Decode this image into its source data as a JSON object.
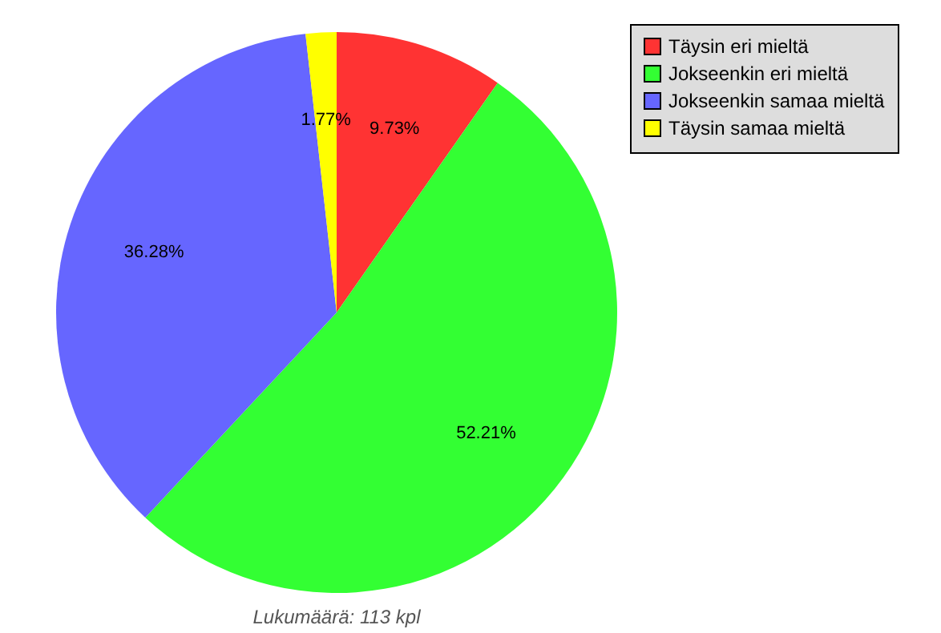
{
  "chart_data": {
    "type": "pie",
    "categories": [
      "Täysin eri mieltä",
      "Jokseenkin eri mieltä",
      "Jokseenkin samaa mieltä",
      "Täysin samaa mieltä"
    ],
    "values": [
      9.73,
      52.21,
      36.28,
      1.77
    ],
    "value_labels": [
      "9.73%",
      "52.21%",
      "36.28%",
      "1.77%"
    ],
    "colors": [
      "#ff3333",
      "#33ff33",
      "#6666ff",
      "#ffff00"
    ],
    "legend": "top right",
    "annotations": [
      "Lukumäärä: 113 kpl"
    ]
  }
}
